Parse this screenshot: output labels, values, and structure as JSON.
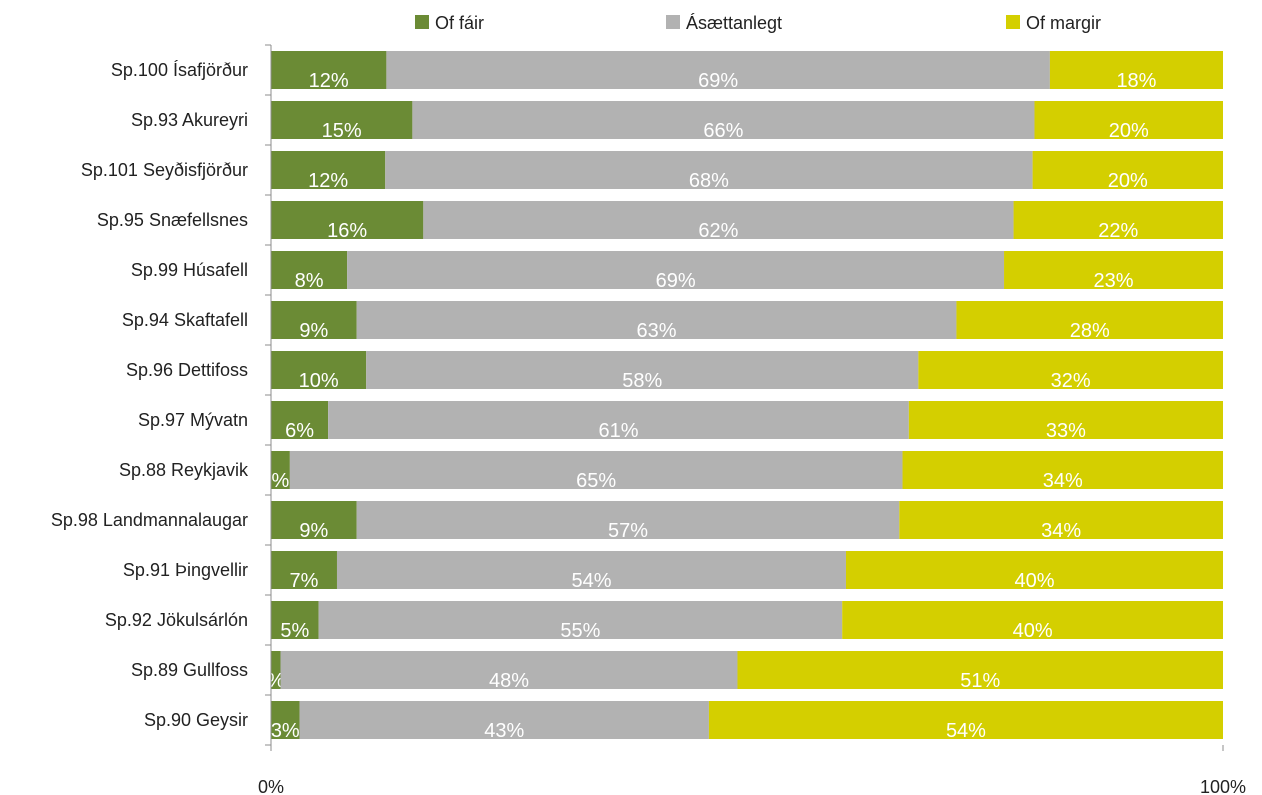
{
  "chart_data": {
    "type": "bar",
    "orientation": "horizontal",
    "stacked": "percent",
    "categories": [
      "Sp.100 Ísafjörður",
      "Sp.93 Akureyri",
      "Sp.101 Seyðisfjörður",
      "Sp.95 Snæfellsnes",
      "Sp.99 Húsafell",
      "Sp.94 Skaftafell",
      "Sp.96 Dettifoss",
      "Sp.97 Mývatn",
      "Sp.88 Reykjavik",
      "Sp.98 Landmannalaugar",
      "Sp.91 Þingvellir",
      "Sp.92 Jökulsárlón",
      "Sp.89 Gullfoss",
      "Sp.90 Geysir"
    ],
    "series": [
      {
        "name": "Of fáir",
        "color": "#6b8b35",
        "values": [
          12,
          15,
          12,
          16,
          8,
          9,
          10,
          6,
          2,
          9,
          7,
          5,
          1,
          3
        ],
        "labels": [
          "12%",
          "15%",
          "12%",
          "16%",
          "8%",
          "9%",
          "10%",
          "6%",
          "%",
          "9%",
          "7%",
          "5%",
          "%",
          "3%"
        ]
      },
      {
        "name": "Ásættanlegt",
        "color": "#b2b2b2",
        "values": [
          69,
          66,
          68,
          62,
          69,
          63,
          58,
          61,
          65,
          57,
          54,
          55,
          48,
          43
        ],
        "labels": [
          "69%",
          "66%",
          "68%",
          "62%",
          "69%",
          "63%",
          "58%",
          "61%",
          "65%",
          "57%",
          "54%",
          "55%",
          "48%",
          "43%"
        ]
      },
      {
        "name": "Of margir",
        "color": "#d4cf00",
        "values": [
          18,
          20,
          20,
          22,
          23,
          28,
          32,
          33,
          34,
          34,
          40,
          40,
          51,
          54
        ],
        "labels": [
          "18%",
          "20%",
          "20%",
          "22%",
          "23%",
          "28%",
          "32%",
          "33%",
          "34%",
          "34%",
          "40%",
          "40%",
          "51%",
          "54%"
        ]
      }
    ],
    "xlim": [
      0,
      100
    ],
    "xticks": [
      "0%",
      "100%"
    ],
    "legend_position": "top",
    "grid": false
  }
}
